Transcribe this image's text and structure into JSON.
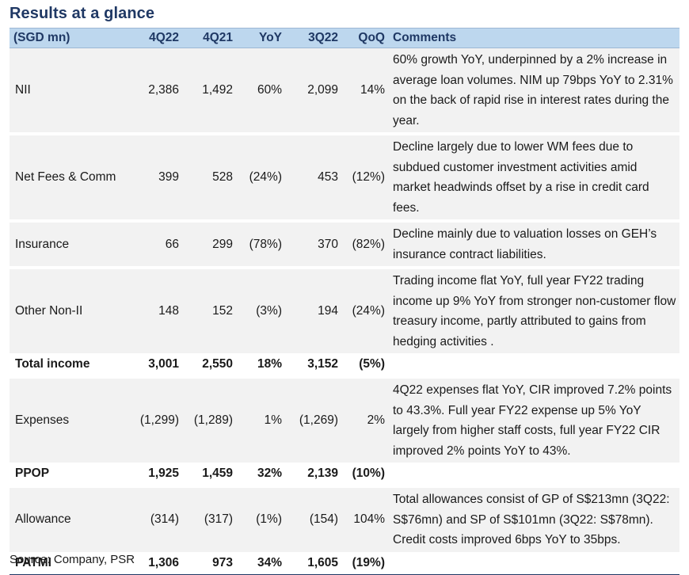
{
  "title": "Results at a glance",
  "headers": [
    "(SGD mn)",
    "4Q22",
    "4Q21",
    "YoY",
    "3Q22",
    "QoQ",
    "Comments"
  ],
  "rows": [
    {
      "label": "NII",
      "q4_22": "2,386",
      "q4_21": "1,492",
      "yoy": "60%",
      "q3_22": "2,099",
      "qoq": "14%",
      "comment": "60% growth YoY, underpinned by a 2% increase in average loan volumes. NIM up 79bps YoY to 2.31% on the back of rapid rise in interest rates during the year."
    },
    {
      "label": "Net Fees & Comm",
      "q4_22": "399",
      "q4_21": "528",
      "yoy": "(24%)",
      "q3_22": "453",
      "qoq": "(12%)",
      "comment": "Decline largely due to lower WM fees due to subdued customer investment activities amid market headwinds offset by a rise in credit card fees."
    },
    {
      "label": "Insurance",
      "q4_22": "66",
      "q4_21": "299",
      "yoy": "(78%)",
      "q3_22": "370",
      "qoq": "(82%)",
      "comment": "Decline mainly due to valuation losses on GEH’s insurance contract liabilities."
    },
    {
      "label": "Other Non-II",
      "q4_22": "148",
      "q4_21": "152",
      "yoy": "(3%)",
      "q3_22": "194",
      "qoq": "(24%)",
      "comment": "Trading income flat YoY, full year FY22 trading income up 9% YoY from stronger non-customer flow treasury income, partly attributed to gains from hedging activities ."
    },
    {
      "label": "Total income",
      "q4_22": "3,001",
      "q4_21": "2,550",
      "yoy": "18%",
      "q3_22": "3,152",
      "qoq": "(5%)",
      "comment": ""
    },
    {
      "label": "Expenses",
      "q4_22": "(1,299)",
      "q4_21": "(1,289)",
      "yoy": "1%",
      "q3_22": "(1,269)",
      "qoq": "2%",
      "comment": "4Q22 expenses flat YoY, CIR improved 7.2% points to 43.3%. Full year FY22 expense up 5% YoY largely from higher staff costs, full year FY22 CIR improved 2% points YoY to 43%."
    },
    {
      "label": "PPOP",
      "q4_22": "1,925",
      "q4_21": "1,459",
      "yoy": "32%",
      "q3_22": "2,139",
      "qoq": "(10%)",
      "comment": ""
    },
    {
      "label": "Allowance",
      "q4_22": "(314)",
      "q4_21": "(317)",
      "yoy": "(1%)",
      "q3_22": "(154)",
      "qoq": "104%",
      "comment": "Total allowances consist of GP of S$213mn (3Q22: S$76mn) and SP of S$101mn (3Q22: S$78mn). Credit costs improved 6bps YoY to 35bps."
    },
    {
      "label": "PATMI",
      "q4_22": "1,306",
      "q4_21": "973",
      "yoy": "34%",
      "q3_22": "1,605",
      "qoq": "(19%)",
      "comment": ""
    }
  ],
  "source": "Source: Company, PSR"
}
